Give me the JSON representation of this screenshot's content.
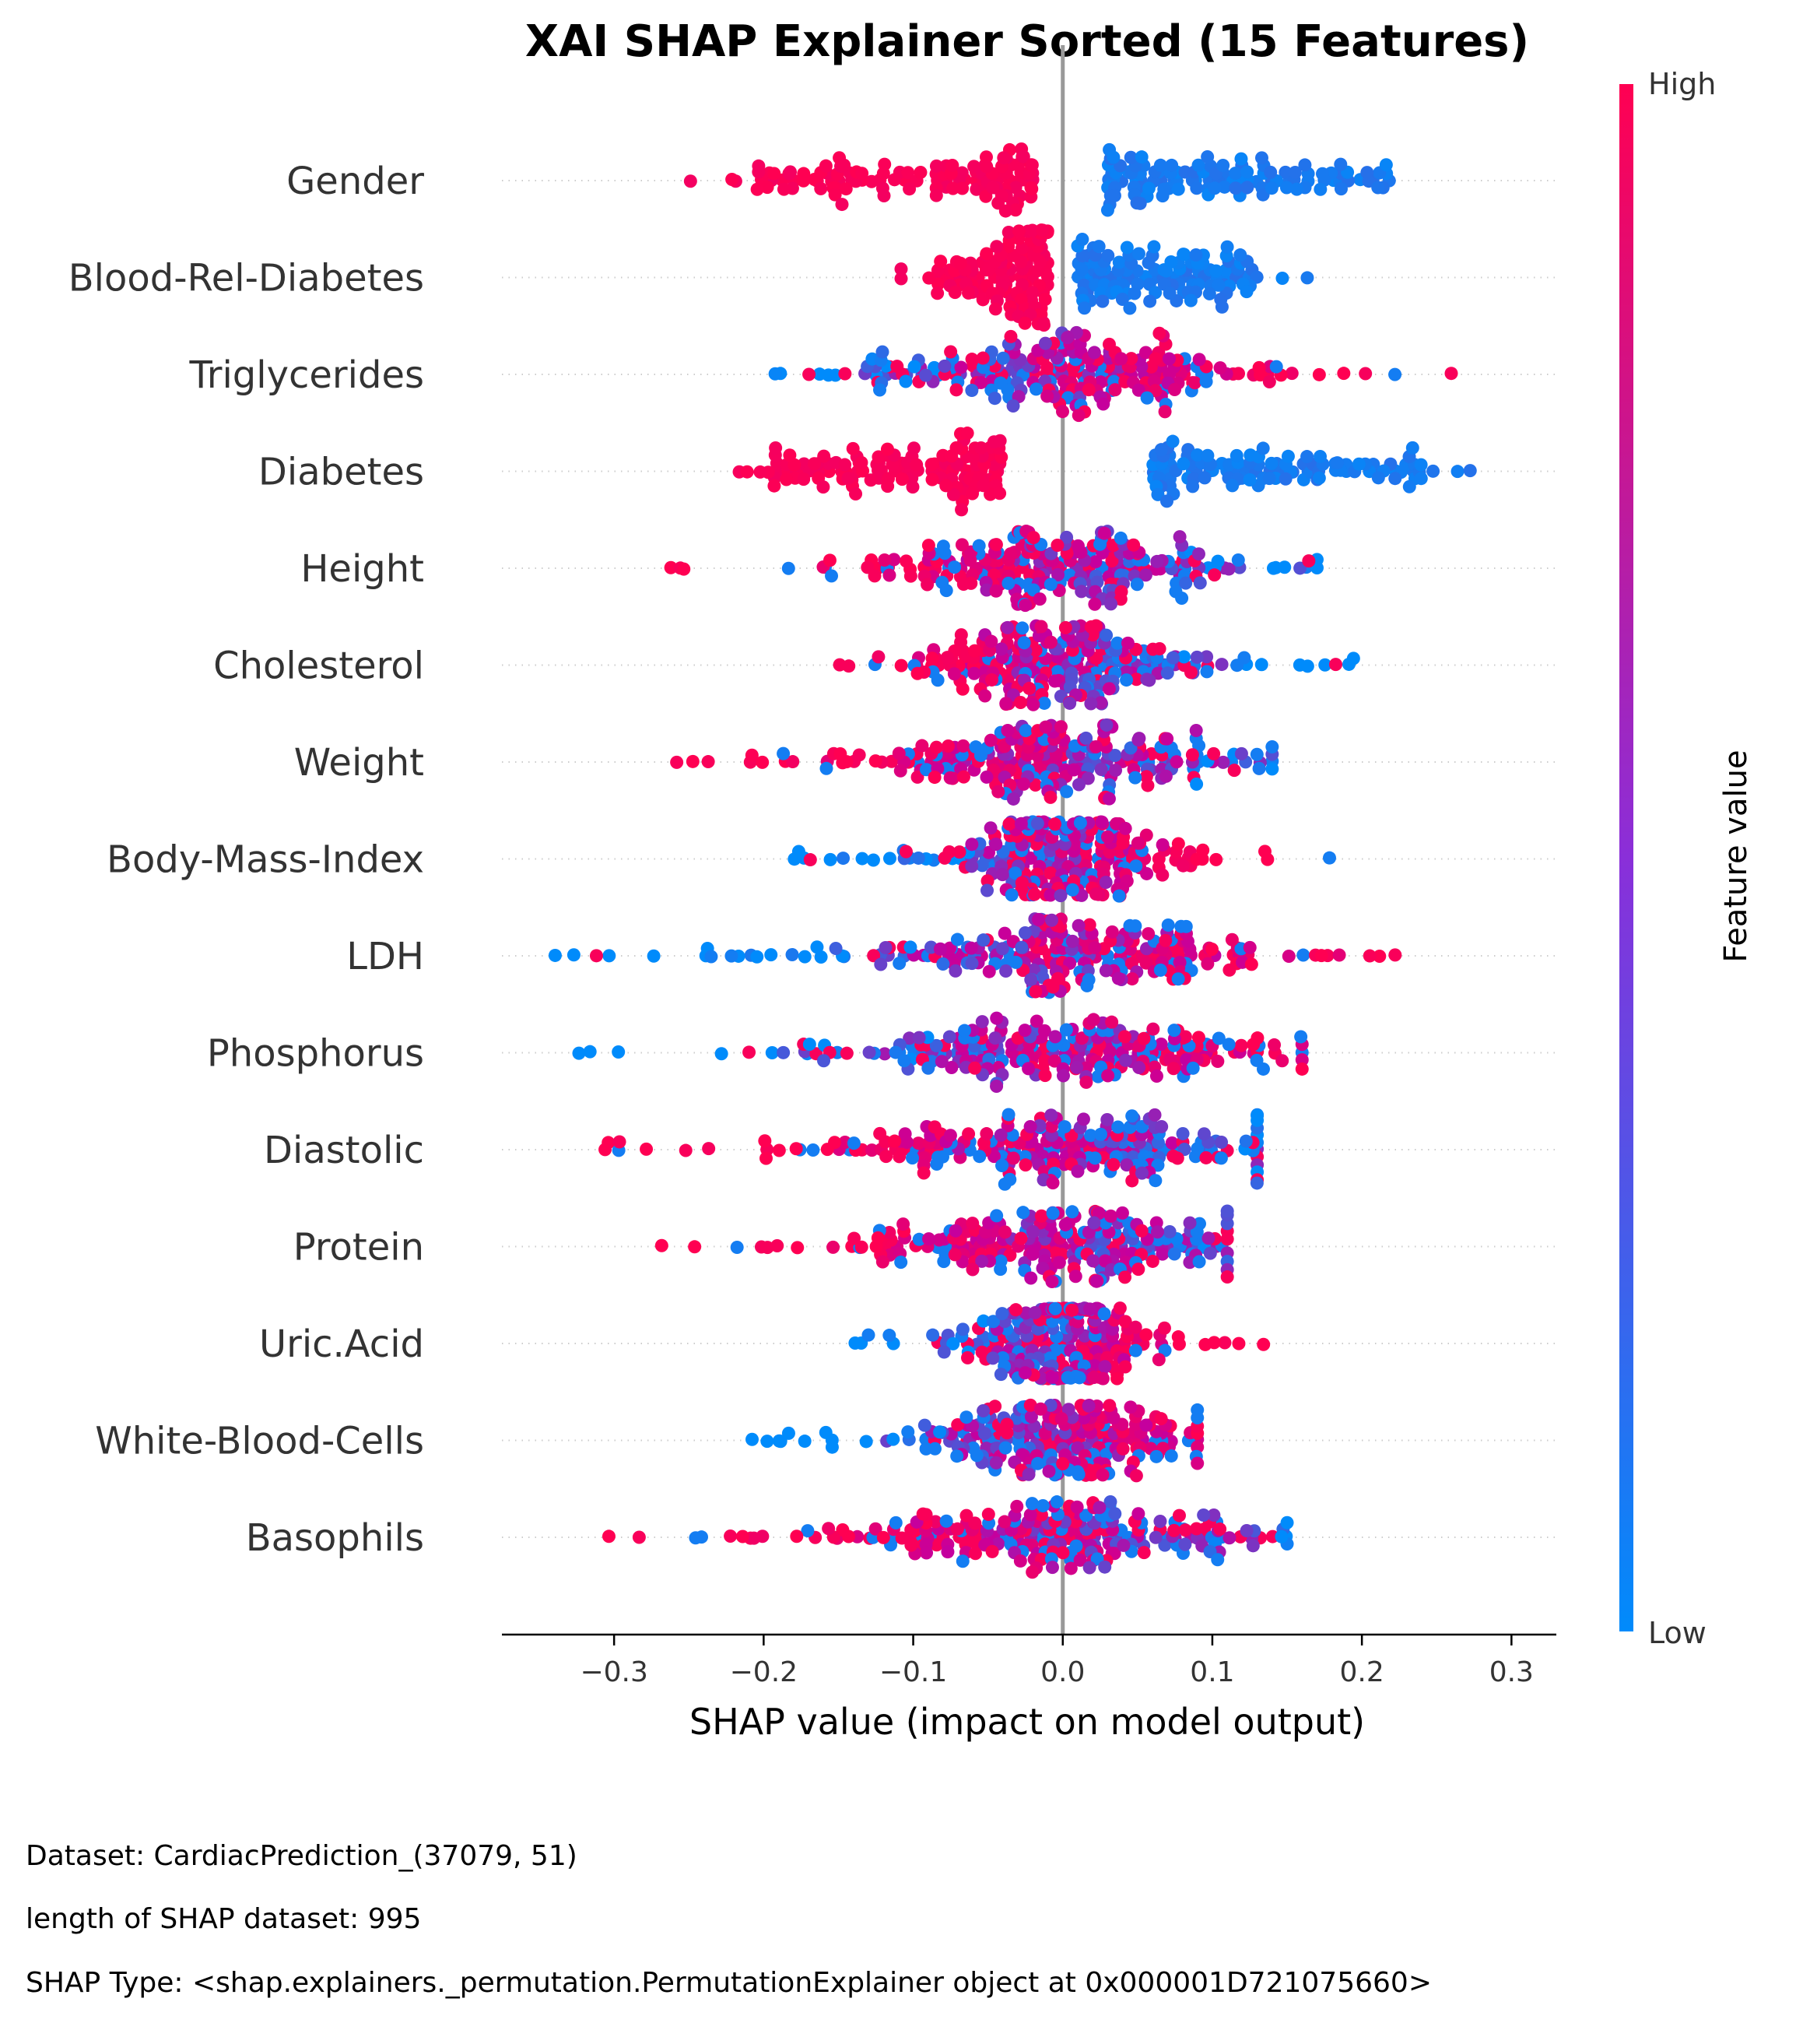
{
  "chart_data": {
    "type": "scatter",
    "subtype": "shap-beeswarm",
    "title": "XAI SHAP Explainer Sorted  (15 Features)",
    "xlabel": "SHAP value (impact on model output)",
    "xlim": [
      -0.375,
      0.33
    ],
    "xticks": [
      -0.3,
      -0.2,
      -0.1,
      0.0,
      0.1,
      0.2,
      0.3
    ],
    "xtick_labels": [
      "−0.3",
      "−0.2",
      "−0.1",
      "0.0",
      "0.1",
      "0.2",
      "0.3"
    ],
    "colorbar": {
      "label": "Feature value",
      "high_label": "High",
      "low_label": "Low",
      "high_color": "#ff0052",
      "mid_color": "#c4009f",
      "low_color": "#008bfb"
    },
    "zero_line_color": "#999999",
    "features": [
      {
        "name": "Gender",
        "min": -0.27,
        "max": 0.28,
        "low_side": "right",
        "sep": [
          -0.02,
          0.03
        ],
        "spread": 0.6,
        "dense": [
          -0.2,
          -0.04,
          0.07,
          0.22
        ],
        "scheme": "split"
      },
      {
        "name": "Blood-Rel-Diabetes",
        "min": -0.11,
        "max": 0.17,
        "low_side": "right",
        "sep": [
          -0.01,
          0.01
        ],
        "spread": 0.55,
        "dense": [
          -0.04,
          -0.02,
          0.02,
          0.1
        ],
        "scheme": "split"
      },
      {
        "name": "Triglycerides",
        "min": -0.2,
        "max": 0.27,
        "low_side": "left",
        "spread": 0.48,
        "dense": [
          -0.06,
          0.1
        ],
        "scheme": "mixed"
      },
      {
        "name": "Diabetes",
        "min": -0.25,
        "max": 0.3,
        "low_side": "right",
        "sep": [
          -0.04,
          0.06
        ],
        "spread": 0.45,
        "dense": [
          -0.03,
          -0.01,
          0.08,
          0.25
        ],
        "scheme": "split"
      },
      {
        "name": "Height",
        "min": -0.27,
        "max": 0.17,
        "low_side": "right",
        "spread": 0.42,
        "dense": [
          -0.08,
          0.08
        ],
        "scheme": "mixed"
      },
      {
        "name": "Cholesterol",
        "min": -0.18,
        "max": 0.22,
        "low_side": "right",
        "spread": 0.45,
        "dense": [
          -0.08,
          0.1
        ],
        "scheme": "mixed"
      },
      {
        "name": "Weight",
        "min": -0.31,
        "max": 0.14,
        "low_side": "right",
        "spread": 0.42,
        "dense": [
          -0.08,
          0.08
        ],
        "scheme": "mixed"
      },
      {
        "name": "Body-Mass-Index",
        "min": -0.18,
        "max": 0.19,
        "low_side": "left",
        "spread": 0.42,
        "dense": [
          -0.07,
          0.1
        ],
        "scheme": "mixed"
      },
      {
        "name": "LDH",
        "min": -0.34,
        "max": 0.24,
        "low_side": "left",
        "spread": 0.42,
        "dense": [
          -0.06,
          0.08
        ],
        "scheme": "mixed"
      },
      {
        "name": "Phosphorus",
        "min": -0.34,
        "max": 0.16,
        "low_side": "left",
        "spread": 0.4,
        "dense": [
          -0.06,
          0.07
        ],
        "scheme": "mixed"
      },
      {
        "name": "Diastolic",
        "min": -0.31,
        "max": 0.13,
        "low_side": "right",
        "spread": 0.4,
        "dense": [
          -0.07,
          0.06
        ],
        "scheme": "mixed"
      },
      {
        "name": "Protein",
        "min": -0.28,
        "max": 0.11,
        "low_side": "right",
        "spread": 0.4,
        "dense": [
          -0.06,
          0.06
        ],
        "scheme": "mixed"
      },
      {
        "name": "Uric.Acid",
        "min": -0.14,
        "max": 0.14,
        "low_side": "left",
        "spread": 0.4,
        "dense": [
          -0.06,
          0.07
        ],
        "scheme": "mixed"
      },
      {
        "name": "White-Blood-Cells",
        "min": -0.22,
        "max": 0.09,
        "low_side": "left",
        "spread": 0.4,
        "dense": [
          -0.05,
          0.05
        ],
        "scheme": "mixed"
      },
      {
        "name": "Basophils",
        "min": -0.31,
        "max": 0.15,
        "low_side": "right",
        "spread": 0.4,
        "dense": [
          -0.06,
          0.05
        ],
        "scheme": "mixed"
      }
    ]
  },
  "footer": {
    "dataset": "Dataset:  CardiacPrediction_(37079, 51)",
    "length": "length of SHAP dataset: 995",
    "shap_type": "SHAP Type: <shap.explainers._permutation.PermutationExplainer object at 0x000001D721075660>"
  }
}
